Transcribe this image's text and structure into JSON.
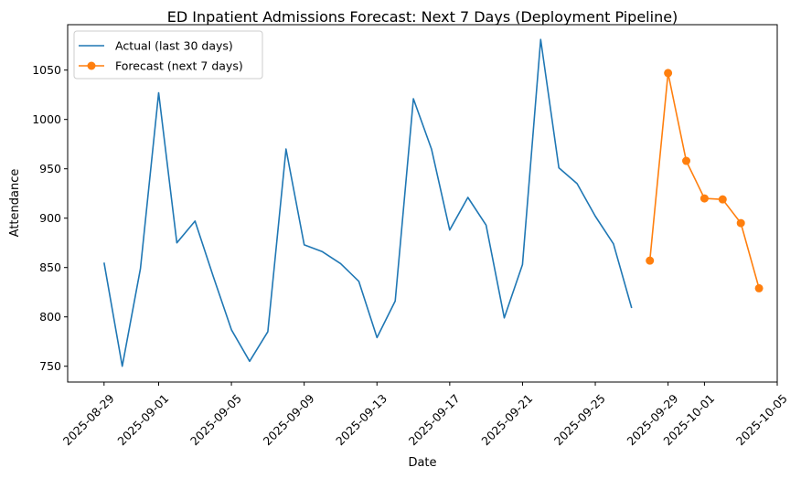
{
  "chart_data": {
    "type": "line",
    "title": "ED Inpatient Admissions Forecast: Next 7 Days (Deployment Pipeline)",
    "xlabel": "Date",
    "ylabel": "Attendance",
    "xlim": [
      "2025-08-27",
      "2025-10-05"
    ],
    "ylim": [
      734,
      1096
    ],
    "x_ticks": [
      "2025-08-29",
      "2025-09-01",
      "2025-09-05",
      "2025-09-09",
      "2025-09-13",
      "2025-09-17",
      "2025-09-21",
      "2025-09-25",
      "2025-09-29",
      "2025-10-01",
      "2025-10-05"
    ],
    "y_ticks": [
      750,
      800,
      850,
      900,
      950,
      1000,
      1050
    ],
    "grid": false,
    "legend_position": "upper left",
    "series": [
      {
        "name": "Actual (last 30 days)",
        "color": "#1f77b4",
        "marker": "none",
        "x": [
          "2025-08-29",
          "2025-08-30",
          "2025-08-31",
          "2025-09-01",
          "2025-09-02",
          "2025-09-03",
          "2025-09-04",
          "2025-09-05",
          "2025-09-06",
          "2025-09-07",
          "2025-09-08",
          "2025-09-09",
          "2025-09-10",
          "2025-09-11",
          "2025-09-12",
          "2025-09-13",
          "2025-09-14",
          "2025-09-15",
          "2025-09-16",
          "2025-09-17",
          "2025-09-18",
          "2025-09-19",
          "2025-09-20",
          "2025-09-21",
          "2025-09-22",
          "2025-09-23",
          "2025-09-24",
          "2025-09-25",
          "2025-09-26",
          "2025-09-27"
        ],
        "y": [
          855,
          750,
          849,
          1027,
          875,
          897,
          841,
          787,
          755,
          785,
          970,
          873,
          866,
          854,
          836,
          779,
          816,
          1021,
          970,
          888,
          921,
          893,
          799,
          853,
          1081,
          951,
          935,
          902,
          874,
          809
        ]
      },
      {
        "name": "Forecast (next 7 days)",
        "color": "#ff7f0e",
        "marker": "circle",
        "x": [
          "2025-09-28",
          "2025-09-29",
          "2025-09-30",
          "2025-10-01",
          "2025-10-02",
          "2025-10-03",
          "2025-10-04"
        ],
        "y": [
          857,
          1047,
          958,
          920,
          919,
          895,
          829
        ]
      }
    ]
  }
}
